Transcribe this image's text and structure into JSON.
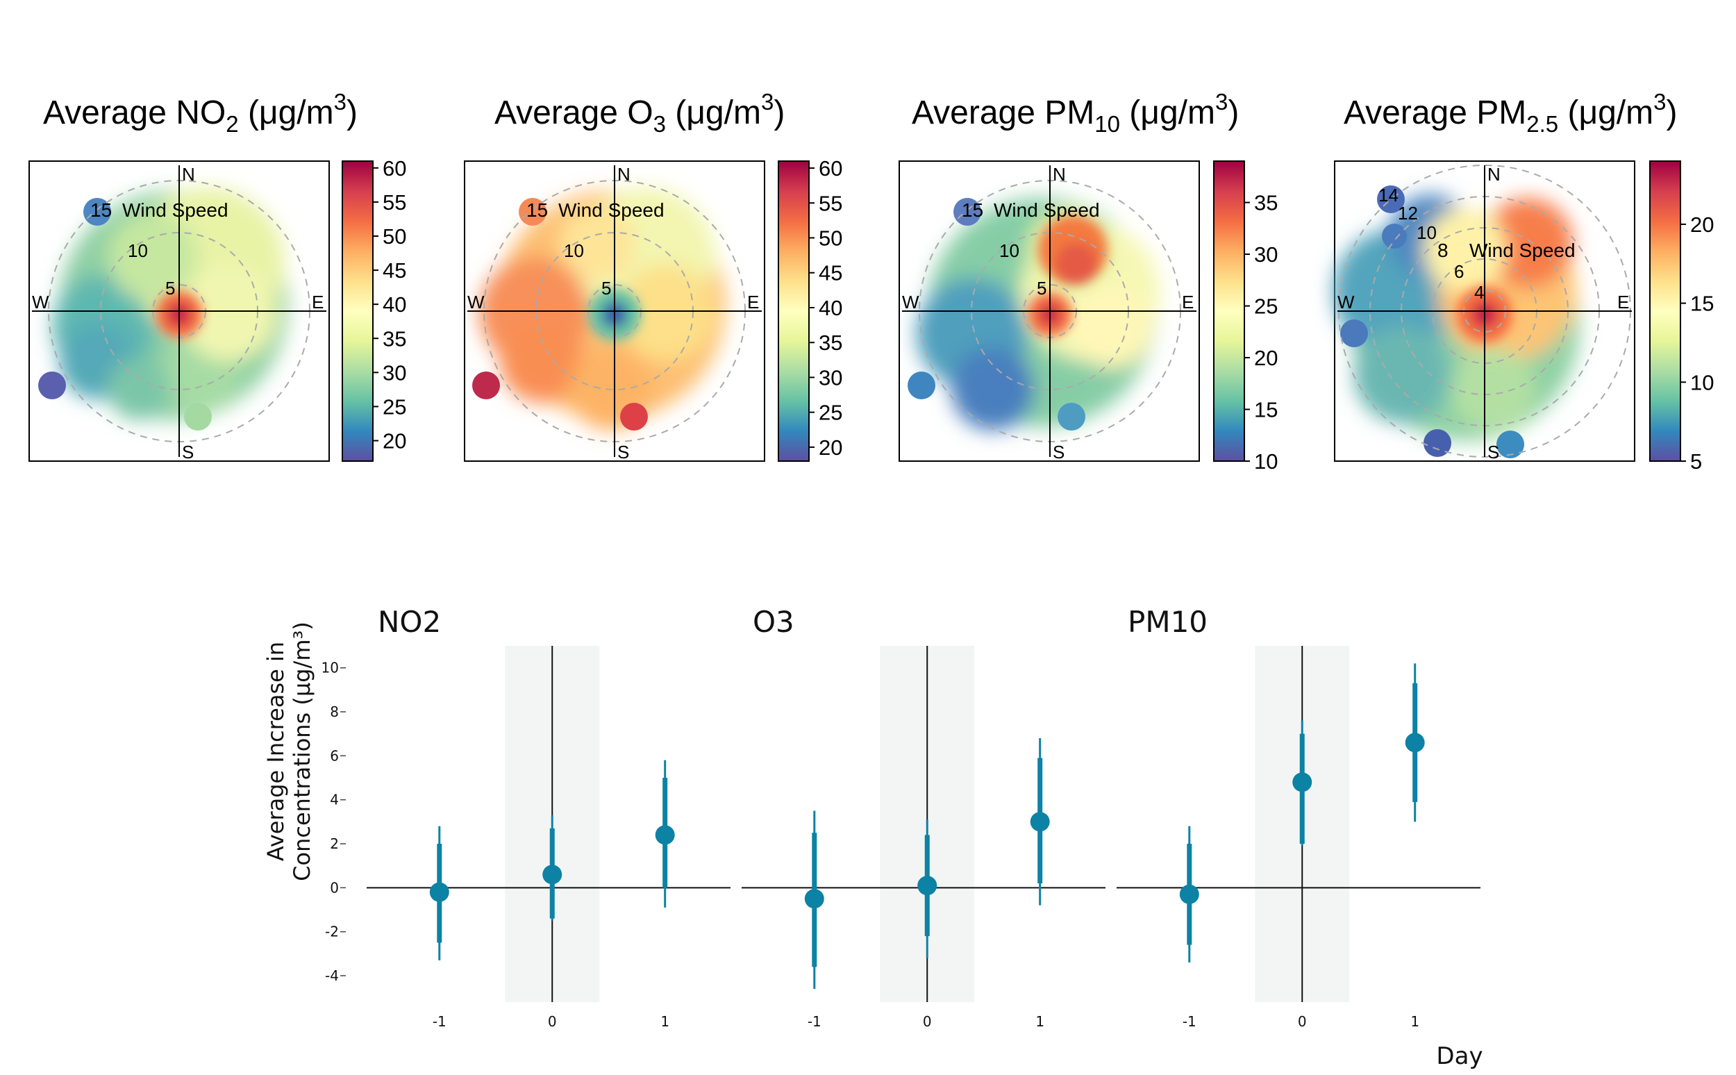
{
  "polar_titles": [
    {
      "prefix": "Average NO",
      "sub": "2",
      "suffix": " (μg/m",
      "sup": "3",
      "close": ")"
    },
    {
      "prefix": "Average O",
      "sub": "3",
      "suffix": " (μg/m",
      "sup": "3",
      "close": ")"
    },
    {
      "prefix": "Average PM",
      "sub": "10",
      "suffix": " (μg/m",
      "sup": "3",
      "close": ")"
    },
    {
      "prefix": "Average PM",
      "sub": "2.5",
      "suffix": " (μg/m",
      "sup": "3",
      "close": ")"
    }
  ],
  "compass": {
    "n": "N",
    "s": "S",
    "e": "E",
    "w": "W"
  },
  "chart_data": [
    {
      "type": "heatmap",
      "subtype": "polar-plot",
      "pollutant": "NO2",
      "wind_speed_label": "Wind Speed",
      "ring_values": [
        5,
        10,
        15
      ],
      "colorbar": {
        "min": 17,
        "max": 61,
        "ticks": [
          20,
          25,
          30,
          35,
          40,
          45,
          50,
          55,
          60
        ]
      }
    },
    {
      "type": "heatmap",
      "subtype": "polar-plot",
      "pollutant": "O3",
      "wind_speed_label": "Wind Speed",
      "ring_values": [
        5,
        10,
        15
      ],
      "colorbar": {
        "min": 18,
        "max": 61,
        "ticks": [
          20,
          25,
          30,
          35,
          40,
          45,
          50,
          55,
          60
        ]
      }
    },
    {
      "type": "heatmap",
      "subtype": "polar-plot",
      "pollutant": "PM10",
      "wind_speed_label": "Wind Speed",
      "ring_values": [
        5,
        10,
        15
      ],
      "colorbar": {
        "min": 10,
        "max": 39,
        "ticks": [
          10,
          15,
          20,
          25,
          30,
          35
        ]
      }
    },
    {
      "type": "heatmap",
      "subtype": "polar-plot",
      "pollutant": "PM2.5",
      "wind_speed_label": "Wind Speed",
      "ring_values": [
        4,
        6,
        8,
        10,
        12,
        14
      ],
      "colorbar": {
        "min": 5,
        "max": 24,
        "ticks": [
          5,
          10,
          15,
          20
        ]
      }
    },
    {
      "type": "scatter",
      "subtype": "point-range",
      "ylabel": [
        "Average Increase in",
        "Concentrations (μg/m³)"
      ],
      "xlabel": "Day",
      "ylim": [
        -5.2,
        11
      ],
      "yticks": [
        -4,
        -2,
        0,
        2,
        4,
        6,
        8,
        10
      ],
      "xticks": [
        -1,
        0,
        1
      ],
      "panels": [
        {
          "name": "NO2",
          "points": [
            {
              "x": -1,
              "y": -0.2,
              "inner": [
                -2.5,
                2.0
              ],
              "outer": [
                -3.3,
                2.8
              ]
            },
            {
              "x": 0,
              "y": 0.6,
              "inner": [
                -1.4,
                2.7
              ],
              "outer": [
                -1.5,
                3.3
              ]
            },
            {
              "x": 1,
              "y": 2.4,
              "inner": [
                0.0,
                5.0
              ],
              "outer": [
                -0.9,
                5.8
              ]
            }
          ]
        },
        {
          "name": "O3",
          "points": [
            {
              "x": -1,
              "y": -0.5,
              "inner": [
                -3.6,
                2.5
              ],
              "outer": [
                -4.6,
                3.5
              ]
            },
            {
              "x": 0,
              "y": 0.1,
              "inner": [
                -2.2,
                2.4
              ],
              "outer": [
                -3.2,
                3.1
              ]
            },
            {
              "x": 1,
              "y": 3.0,
              "inner": [
                0.2,
                5.9
              ],
              "outer": [
                -0.8,
                6.8
              ]
            }
          ]
        },
        {
          "name": "PM10",
          "points": [
            {
              "x": -1,
              "y": -0.3,
              "inner": [
                -2.6,
                2.0
              ],
              "outer": [
                -3.4,
                2.8
              ]
            },
            {
              "x": 0,
              "y": 4.8,
              "inner": [
                2.0,
                7.0
              ],
              "outer": [
                1.9,
                7.6
              ]
            },
            {
              "x": 1,
              "y": 6.6,
              "inner": [
                3.9,
                9.3
              ],
              "outer": [
                3.0,
                10.2
              ]
            }
          ]
        }
      ]
    }
  ]
}
